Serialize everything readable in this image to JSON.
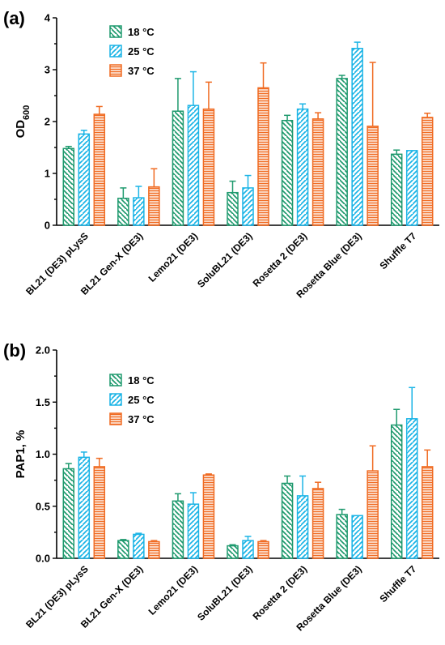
{
  "chart_data": [
    {
      "type": "bar",
      "panel_label": "(a)",
      "ylabel_main": "OD",
      "ylabel_sub": "600",
      "ylim": [
        0,
        4
      ],
      "yticks": [
        "0",
        "1",
        "2",
        "3",
        "4"
      ],
      "categories": [
        "BL21 (DE3) pLysS",
        "BL21 Gen-X (DE3)",
        "Lemo21 (DE3)",
        "SoluBL21 (DE3)",
        "Rosetta 2 (DE3)",
        "Rosetta Blue (DE3)",
        "Shuffle T7"
      ],
      "series": [
        {
          "name": "18 °C",
          "color": "#1f9a6e",
          "pattern": "diagonal-down",
          "values": [
            1.48,
            0.52,
            2.2,
            0.63,
            2.02,
            2.83,
            1.37
          ],
          "errors": [
            0.04,
            0.2,
            0.63,
            0.22,
            0.1,
            0.06,
            0.08
          ]
        },
        {
          "name": "25 °C",
          "color": "#1ab4e6",
          "pattern": "diagonal-up",
          "values": [
            1.76,
            0.53,
            2.31,
            0.72,
            2.24,
            3.41,
            1.44
          ],
          "errors": [
            0.07,
            0.22,
            0.65,
            0.24,
            0.1,
            0.12,
            0.0
          ]
        },
        {
          "name": "37 °C",
          "color": "#f06b22",
          "pattern": "horizontal",
          "values": [
            2.14,
            0.74,
            2.24,
            2.65,
            2.05,
            1.91,
            2.08
          ],
          "errors": [
            0.15,
            0.35,
            0.52,
            0.48,
            0.12,
            1.23,
            0.08
          ]
        }
      ]
    },
    {
      "type": "bar",
      "panel_label": "(b)",
      "ylabel_main": "PAP1, %",
      "ylabel_sub": "",
      "ylim": [
        0,
        2.0
      ],
      "yticks": [
        "0.0",
        "0.5",
        "1.0",
        "1.5",
        "2.0"
      ],
      "categories": [
        "BL21 (DE3) pLysS",
        "BL21 Gen-X (DE3)",
        "Lemo21 (DE3)",
        "SoluBL21 (DE3)",
        "Rosetta 2 (DE3)",
        "Rosetta Blue (DE3)",
        "Shuffle T7"
      ],
      "series": [
        {
          "name": "18 °C",
          "color": "#1f9a6e",
          "pattern": "diagonal-down",
          "values": [
            0.86,
            0.17,
            0.55,
            0.12,
            0.72,
            0.42,
            1.28
          ],
          "errors": [
            0.05,
            0.01,
            0.07,
            0.01,
            0.07,
            0.05,
            0.15
          ]
        },
        {
          "name": "25 °C",
          "color": "#1ab4e6",
          "pattern": "diagonal-up",
          "values": [
            0.97,
            0.23,
            0.52,
            0.17,
            0.6,
            0.41,
            1.34
          ],
          "errors": [
            0.05,
            0.01,
            0.11,
            0.04,
            0.19,
            0.0,
            0.3
          ]
        },
        {
          "name": "37 °C",
          "color": "#f06b22",
          "pattern": "horizontal",
          "values": [
            0.88,
            0.16,
            0.8,
            0.16,
            0.67,
            0.84,
            0.88
          ],
          "errors": [
            0.08,
            0.01,
            0.01,
            0.01,
            0.06,
            0.24,
            0.16
          ]
        }
      ]
    }
  ]
}
